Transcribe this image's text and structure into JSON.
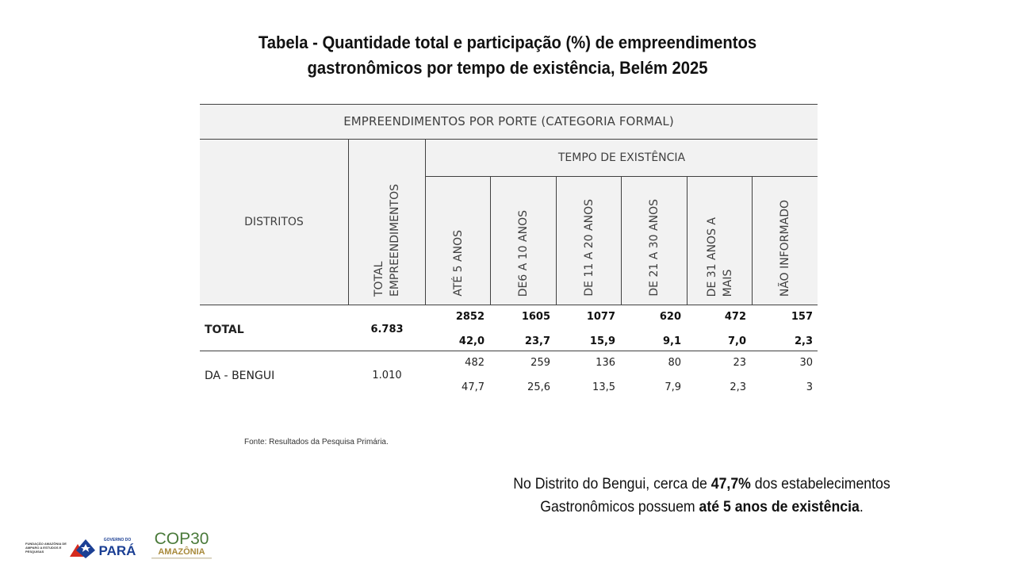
{
  "title": {
    "line1": "Tabela - Quantidade total e participação (%) de empreendimentos",
    "line2": "gastronômicos por tempo de existência, Belém 2025"
  },
  "table": {
    "main_header": "EMPREENDIMENTOS POR PORTE (CATEGORIA FORMAL)",
    "col_districts": "DISTRITOS",
    "col_total": "TOTAL\nEMPREENDIMENTOS",
    "group_header": "TEMPO DE EXISTÊNCIA",
    "sub_columns": [
      "ATÉ 5 ANOS",
      "DE6 A 10 ANOS",
      "DE 11 A 20 ANOS",
      "DE 21 A 30 ANOS",
      "DE 31 ANOS A\nMAIS",
      "NÃO INFORMADO"
    ],
    "rows": [
      {
        "label": "TOTAL",
        "total": "6.783",
        "counts": [
          "2852",
          "1605",
          "1077",
          "620",
          "472",
          "157"
        ],
        "percents": [
          "42,0",
          "23,7",
          "15,9",
          "9,1",
          "7,0",
          "2,3"
        ]
      },
      {
        "label": "DA - BENGUI",
        "total": "1.010",
        "counts": [
          "482",
          "259",
          "136",
          "80",
          "23",
          "30"
        ],
        "percents": [
          "47,7",
          "25,6",
          "13,5",
          "7,9",
          "2,3",
          "3"
        ]
      }
    ]
  },
  "source": "Fonte: Resultados da Pesquisa Primária.",
  "note": {
    "part1": "No Distrito do Bengui, cerca de ",
    "bold1": "47,7%",
    "part2": " dos estabelecimentos",
    "part3": "Gastronômicos possuem ",
    "bold2": "até 5 anos de existência",
    "part4": "."
  },
  "logos": {
    "fapespa_text": "FUNDAÇÃO AMAZÔNIA DE AMPARO A ESTUDOS E PESQUISAS",
    "para_top": "GOVERNO DO",
    "para_main": "PARÁ",
    "cop_main": "COP30",
    "cop_sub": "AMAZÔNIA"
  },
  "colors": {
    "header_bg": "#f2f2f2",
    "rule": "#404040",
    "para_red": "#d52b1e",
    "para_blue": "#1b3f94",
    "cop_green": "#4a7a3a",
    "cop_gold": "#a8893a"
  }
}
